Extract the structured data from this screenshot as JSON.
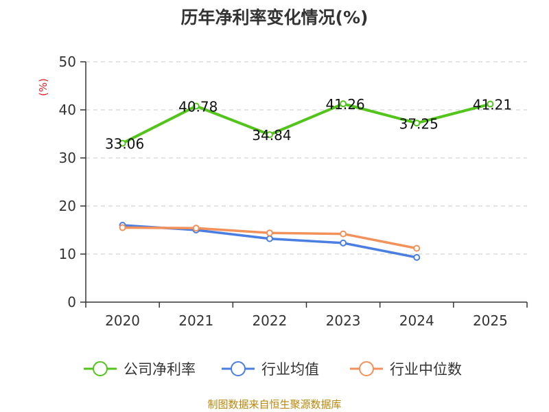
{
  "chart_data": {
    "type": "line",
    "title": "历年净利率变化情况(%)",
    "ylabel": "(%)",
    "xlabel": "",
    "categories": [
      "2020",
      "2021",
      "2022",
      "2023",
      "2024",
      "2025"
    ],
    "ylim": [
      0,
      50
    ],
    "yticks": [
      0,
      10,
      20,
      30,
      40,
      50
    ],
    "grid": true,
    "legend": "bottom",
    "series": [
      {
        "name": "公司净利率",
        "color": "#52c41a",
        "values": [
          33.06,
          40.78,
          34.84,
          41.26,
          37.25,
          41.21
        ],
        "labels": [
          "33.06",
          "40.78",
          "34.84",
          "41.26",
          "37.25",
          "41.21"
        ]
      },
      {
        "name": "行业均值",
        "color": "#4a7ee0",
        "values": [
          16.0,
          15.0,
          13.2,
          12.3,
          9.3,
          null
        ]
      },
      {
        "name": "行业中位数",
        "color": "#f2915a",
        "values": [
          15.5,
          15.4,
          14.4,
          14.2,
          11.2,
          null
        ]
      }
    ]
  },
  "source": "制图数据来自恒生聚源数据库",
  "axis_color": "#333333",
  "unit_color": "#e02020",
  "grid_color": "#c8c8c8"
}
